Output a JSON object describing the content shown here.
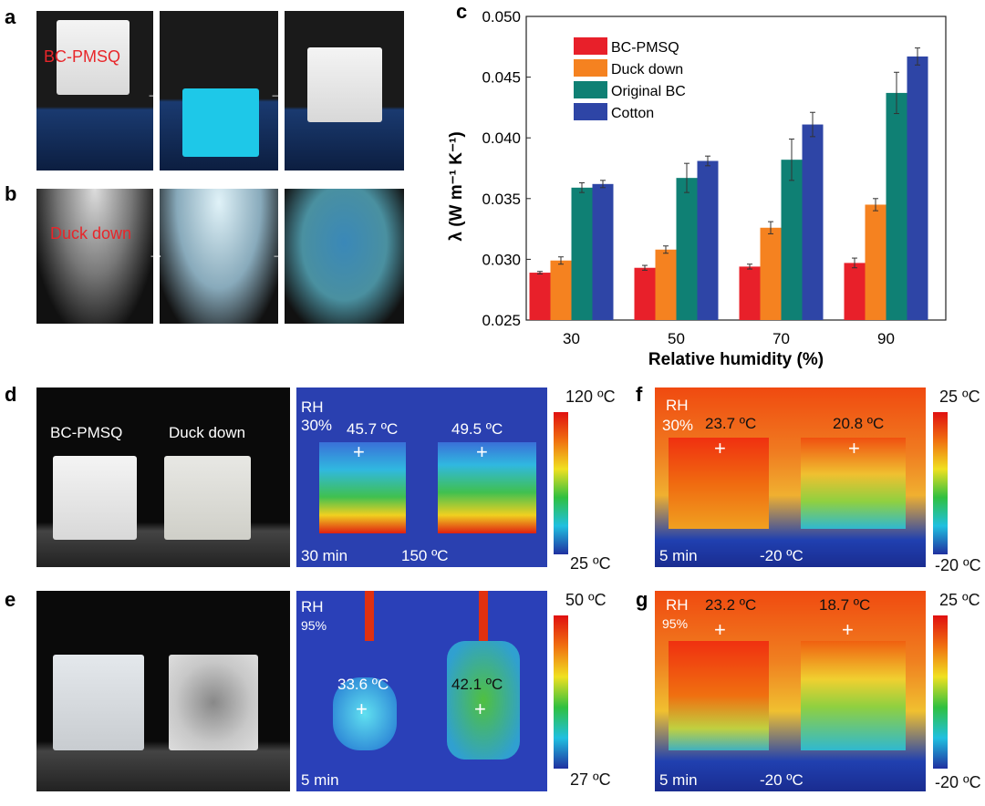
{
  "panel_labels": {
    "a": "a",
    "b": "b",
    "c": "c",
    "d": "d",
    "e": "e",
    "f": "f",
    "g": "g"
  },
  "panel_a": {
    "sample": "BC-PMSQ",
    "arrow": "→"
  },
  "panel_b": {
    "sample": "Duck down",
    "arrow": "→"
  },
  "panel_d": {
    "photo_labels": [
      "BC-PMSQ",
      "Duck down"
    ],
    "rh": "RH",
    "rh_value": "30%",
    "temps": [
      "45.7 ºC",
      "49.5 ºC"
    ],
    "time": "30 min",
    "heater": "150 ºC",
    "cbar_max": "120 ºC",
    "cbar_min": "25 ºC"
  },
  "panel_e": {
    "rh": "RH",
    "rh_value": "95%",
    "temps": [
      "33.6 ºC",
      "42.1 ºC"
    ],
    "time": "5 min",
    "cbar_max": "50 ºC",
    "cbar_min": "27 ºC"
  },
  "panel_f": {
    "rh": "RH",
    "rh_value": "30%",
    "temps": [
      "23.7 ºC",
      "20.8 ºC"
    ],
    "time": "5 min",
    "cold": "-20 ºC",
    "cbar_max": "25 ºC",
    "cbar_min": "-20 ºC"
  },
  "panel_g": {
    "rh": "RH",
    "rh_value": "95%",
    "temps": [
      "23.2 ºC",
      "18.7 ºC"
    ],
    "time": "5 min",
    "cold": "-20 ºC",
    "cbar_max": "25 ºC",
    "cbar_min": "-20 ºC"
  },
  "chart_data": {
    "type": "bar",
    "xlabel": "Relative humidity (%)",
    "ylabel": "λ (W m⁻¹ K⁻¹)",
    "categories": [
      "30",
      "50",
      "70",
      "90"
    ],
    "ylim": [
      0.025,
      0.05
    ],
    "yticks": [
      "0.025",
      "0.030",
      "0.035",
      "0.040",
      "0.045",
      "0.050"
    ],
    "legend": "top-left",
    "series": [
      {
        "name": "BC-PMSQ",
        "color": "#e8202a",
        "values": [
          0.0289,
          0.0293,
          0.0294,
          0.0297
        ],
        "errors": [
          0.0001,
          0.0002,
          0.0002,
          0.0004
        ]
      },
      {
        "name": "Duck down",
        "color": "#f58220",
        "values": [
          0.0299,
          0.0308,
          0.0326,
          0.0345
        ],
        "errors": [
          0.0003,
          0.0003,
          0.0005,
          0.0005
        ]
      },
      {
        "name": "Original BC",
        "color": "#0f8074",
        "values": [
          0.0359,
          0.0367,
          0.0382,
          0.0437
        ],
        "errors": [
          0.0004,
          0.0012,
          0.0017,
          0.0017
        ]
      },
      {
        "name": "Cotton",
        "color": "#2e45a6",
        "values": [
          0.0362,
          0.0381,
          0.0411,
          0.0467
        ],
        "errors": [
          0.0003,
          0.0004,
          0.001,
          0.0007
        ]
      }
    ]
  }
}
